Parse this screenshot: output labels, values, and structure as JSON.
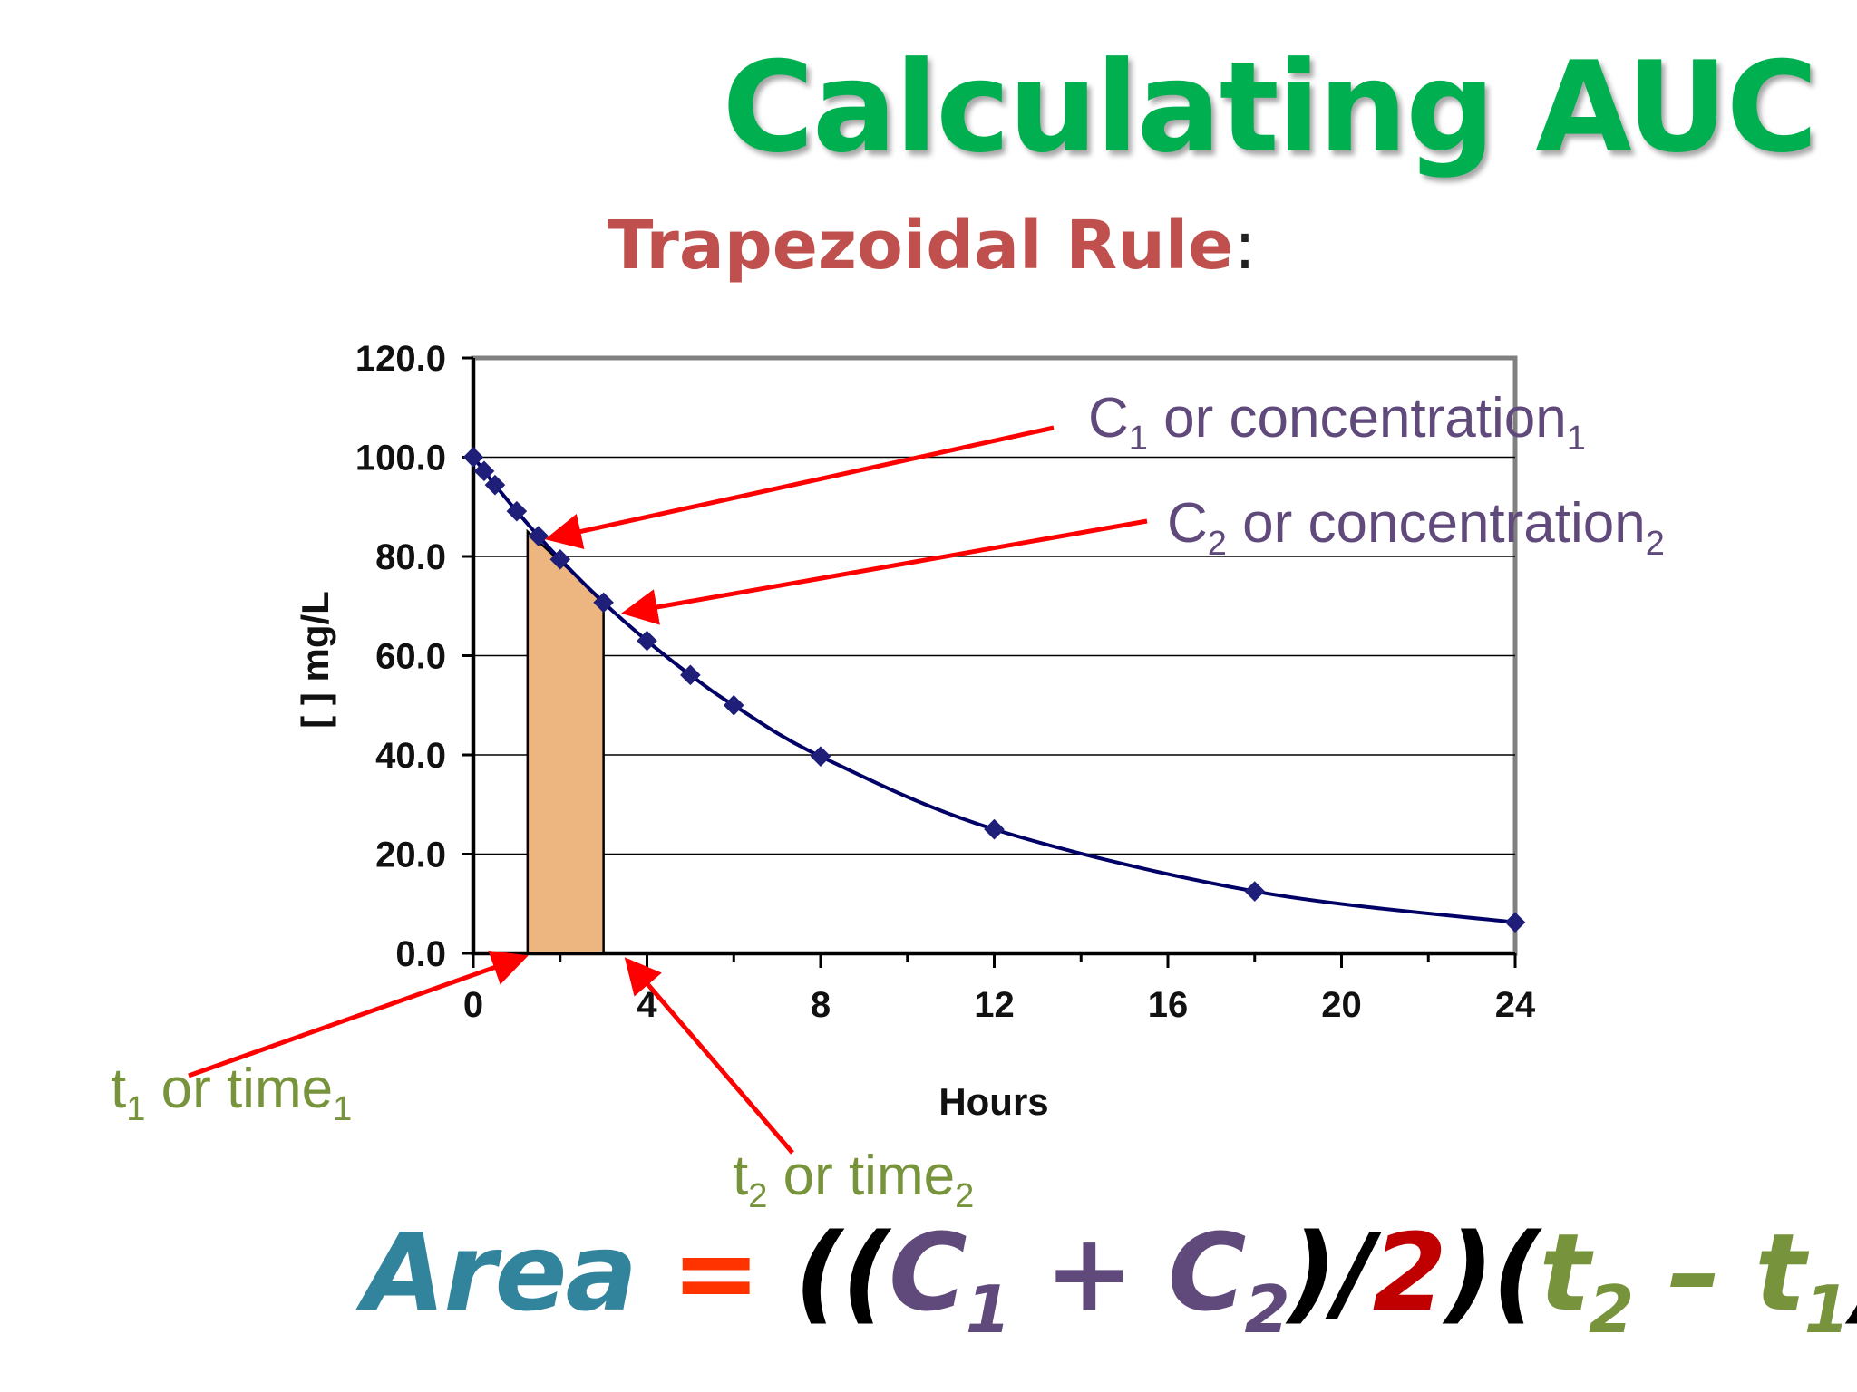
{
  "slide": {
    "title": "Calculating AUC",
    "subtitle": "Trapezoidal Rule",
    "subtitle_colon": ":"
  },
  "annotations": {
    "c1_main": "C",
    "c1_sub": "1",
    "c1_text": " or concentration",
    "c1_text_sub": "1",
    "c2_main": "C",
    "c2_sub": "2",
    "c2_text": " or concentration",
    "c2_text_sub": "2",
    "t1_main": "t",
    "t1_sub": "1",
    "t1_text": " or time",
    "t1_text_sub": "1",
    "t2_main": "t",
    "t2_sub": "2",
    "t2_text": " or time",
    "t2_text_sub": "2"
  },
  "formula": {
    "area": "Area",
    "eq": " = ",
    "open": "((",
    "c1": "C",
    "c1_sub": "1",
    "plus": " + ",
    "c2": "C",
    "c2_sub": "2",
    "close_div": ")/",
    "two": "2",
    "close_open": ")(",
    "t2": "t",
    "t2_sub": "2",
    "minus": " – ",
    "t1": "t",
    "t1_sub": "1",
    "close": ")"
  },
  "colors": {
    "title": "#00b050",
    "subtitle": "#c0504d",
    "curve": "#000066",
    "marker": "#1f1f7a",
    "trapezoid": "#edb57f",
    "arrow": "#ff0000",
    "conc_label": "#604a7b",
    "time_label": "#77933c",
    "area": "#31849b",
    "equals": "#ff3300",
    "two": "#c00000"
  },
  "chart_data": {
    "type": "line",
    "xlabel": "Hours",
    "ylabel": "[ ] mg/L",
    "xlim": [
      0,
      24
    ],
    "ylim": [
      0,
      120
    ],
    "x_ticks": [
      "0",
      "4",
      "8",
      "12",
      "16",
      "20",
      "24"
    ],
    "y_ticks": [
      "0.0",
      "20.0",
      "40.0",
      "60.0",
      "80.0",
      "100.0",
      "120.0"
    ],
    "grid": "horizontal",
    "series": [
      {
        "x": [
          0,
          0.25,
          0.5,
          1,
          1.5,
          2,
          3,
          4,
          5,
          6,
          8,
          12,
          18,
          24
        ],
        "y": [
          100,
          97.2,
          94.4,
          89.1,
          84.1,
          79.4,
          70.7,
          63.0,
          56.1,
          50.0,
          39.7,
          25.0,
          12.5,
          6.25
        ]
      }
    ],
    "trapezoid": {
      "t1": 1.25,
      "t2": 3.0,
      "c1": 85.0,
      "c2": 71.0
    }
  }
}
